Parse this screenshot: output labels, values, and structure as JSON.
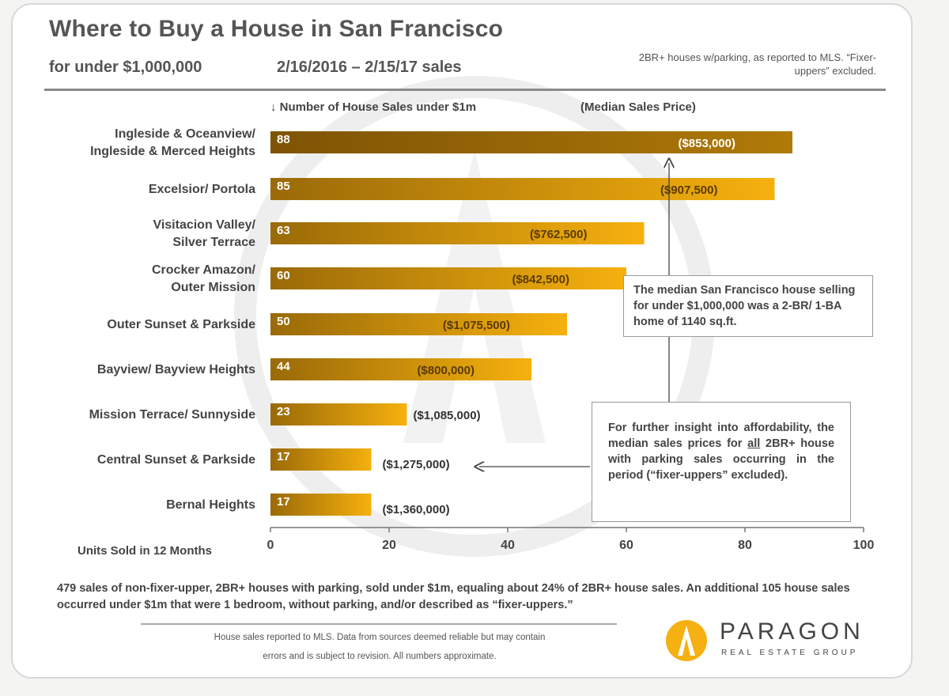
{
  "header": {
    "title": "Where to Buy a House in San Francisco",
    "subtitle": "for under $1,000,000",
    "date_range": "2/16/2016 – 2/15/17 sales",
    "scope_note": "2BR+ houses w/parking, as reported to MLS. “Fixer-uppers” excluded."
  },
  "chart_data": {
    "type": "bar",
    "orientation": "horizontal",
    "series_label": "↓ Number of House Sales under $1m",
    "price_label": "(Median Sales Price)",
    "xlabel": "Units Sold in 12 Months",
    "xlim": [
      0,
      100
    ],
    "xticks": [
      0,
      20,
      40,
      60,
      80,
      100
    ],
    "categories": [
      [
        "Ingleside & Oceanview/",
        "Ingleside & Merced Heights"
      ],
      [
        "Excelsior/ Portola"
      ],
      [
        "Visitacion Valley/",
        "Silver Terrace"
      ],
      [
        "Crocker Amazon/",
        "Outer Mission"
      ],
      [
        "Outer Sunset & Parkside"
      ],
      [
        "Bayview/ Bayview Heights"
      ],
      [
        "Mission Terrace/ Sunnyside"
      ],
      [
        "Central Sunset  & Parkside"
      ],
      [
        "Bernal Heights"
      ]
    ],
    "values": [
      88,
      85,
      63,
      60,
      50,
      44,
      23,
      17,
      17
    ],
    "median_prices": [
      "($853,000)",
      "($907,500)",
      "($762,500)",
      "($842,500)",
      "($1,075,500)",
      "($800,000)",
      "($1,085,000)",
      "($1,275,000)",
      "($1,360,000)"
    ],
    "colors": {
      "bar_dark": "#9a6a08",
      "bar_light": "#f6b10e",
      "first_bar_dark": "#7e5304",
      "first_bar_light": "#b07a08",
      "axis": "#777777"
    }
  },
  "callouts": {
    "median_house": "The median San Francisco house selling for under $1,000,000 was a 2-BR/ 1-BA home of 1140 sq.ft.",
    "insight_before": "For further insight into affordability, the median sales prices for ",
    "insight_emph": "all",
    "insight_after": " 2BR+ house with parking sales occurring in the period (“fixer-uppers” excluded)."
  },
  "footer": {
    "note": "479 sales of non-fixer-upper, 2BR+ houses with parking, sold under $1m, equaling about 24% of 2BR+ house sales. An additional 105 house sales occurred under $1m that were 1 bedroom, without parking, and/or described as “fixer-uppers.”",
    "disclaimer_line1": "House sales reported to MLS. Data from sources deemed reliable but may contain",
    "disclaimer_line2": "errors and is subject to revision. All numbers approximate.",
    "logo_name": "PARAGON",
    "logo_tagline": "REAL ESTATE GROUP"
  }
}
